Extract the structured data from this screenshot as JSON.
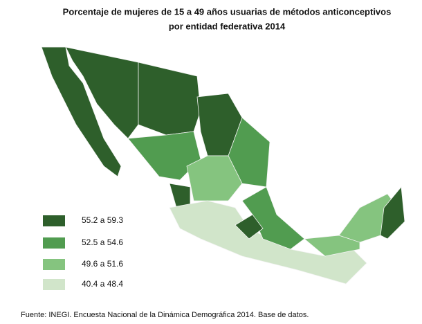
{
  "title": [
    "Porcentaje de mujeres de 15 a 49 años usuarias de métodos anticonceptivos",
    "por entidad federativa 2014"
  ],
  "legend": [
    {
      "label": "55.2 a 59.3",
      "color": "#2e5f2b"
    },
    {
      "label": "52.5 a 54.6",
      "color": "#519c50"
    },
    {
      "label": "49.6 a 51.6",
      "color": "#85c47f"
    },
    {
      "label": "40.4 a 48.4",
      "color": "#d1e5ca"
    }
  ],
  "source": "Fuente: INEGI. Encuesta Nacional de la Dinámica Demográfica 2014. Base de datos."
}
